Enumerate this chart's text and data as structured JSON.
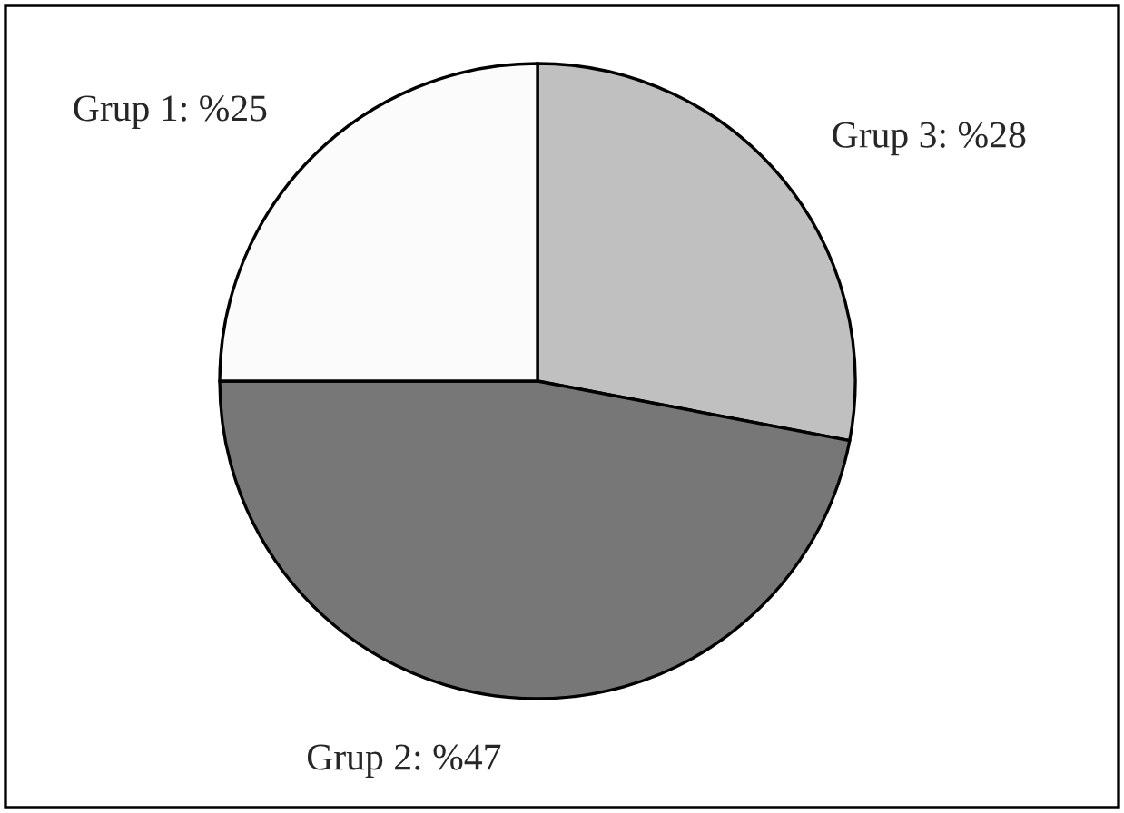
{
  "chart_data": {
    "type": "pie",
    "categories": [
      "Grup 3",
      "Grup 2",
      "Grup 1"
    ],
    "values": [
      28,
      47,
      25
    ],
    "value_labels": [
      "%28",
      "%47",
      "%25"
    ],
    "colors": [
      "#c0c0c0",
      "#777777",
      "#fbfbfb"
    ]
  }
}
